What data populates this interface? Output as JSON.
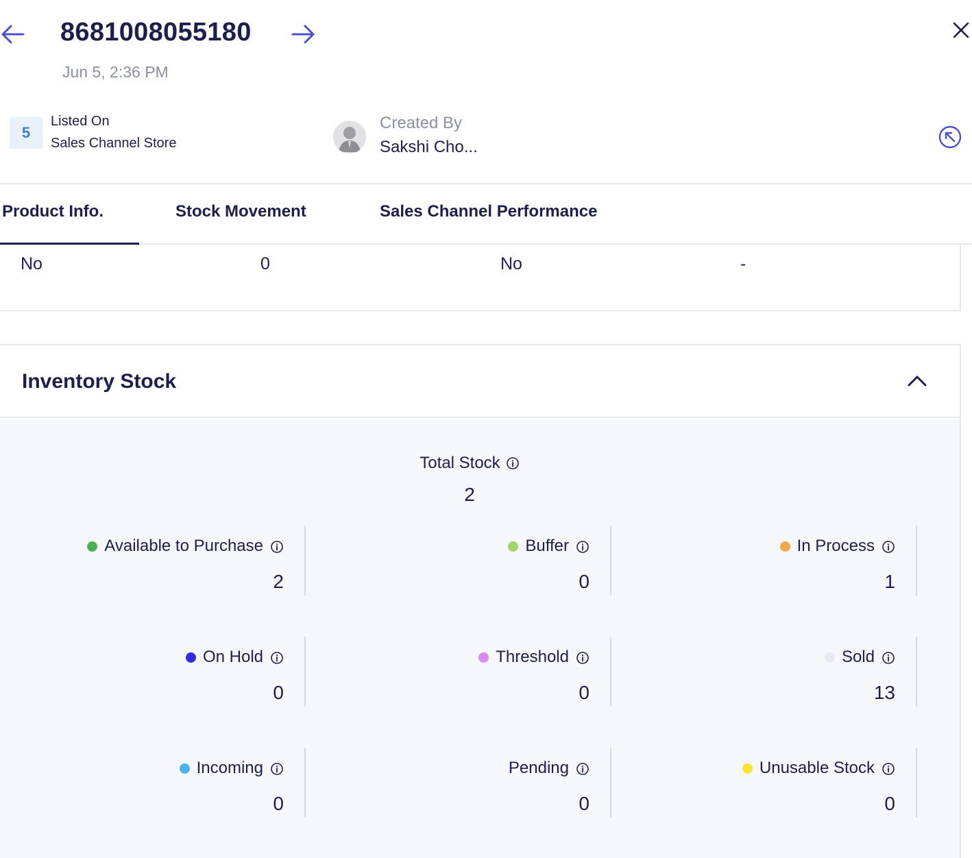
{
  "header": {
    "title": "8681008055180",
    "subtitle": "Jun 5, 2:36 PM",
    "badge_count": "5",
    "listed_label": "Listed On",
    "listed_value": "Sales Channel Store",
    "created_label": "Created By",
    "created_value": "Sakshi Cho..."
  },
  "tabs": [
    {
      "label": "Product Info."
    },
    {
      "label": "Stock Movement"
    },
    {
      "label": "Sales Channel Performance"
    }
  ],
  "info_row": [
    "No",
    "0",
    "No",
    "-"
  ],
  "inventory": {
    "title": "Inventory Stock",
    "total_label": "Total Stock",
    "total_value": "2",
    "items": [
      {
        "label": "Available to Purchase",
        "value": "2",
        "color": "#4caf50"
      },
      {
        "label": "Buffer",
        "value": "0",
        "color": "#a4d36a"
      },
      {
        "label": "In Process",
        "value": "1",
        "color": "#f2a84b"
      },
      {
        "label": "On Hold",
        "value": "0",
        "color": "#3527e6"
      },
      {
        "label": "Threshold",
        "value": "0",
        "color": "#d98bef"
      },
      {
        "label": "Sold",
        "value": "13",
        "color": "#e8e8f3"
      },
      {
        "label": "Incoming",
        "value": "0",
        "color": "#4ab2ee"
      },
      {
        "label": "Pending",
        "value": "0",
        "color": ""
      },
      {
        "label": "Unusable Stock",
        "value": "0",
        "color": "#f7e434"
      }
    ]
  },
  "colors": {
    "accent": "#4a4fd0",
    "text": "#1c1f4a",
    "muted": "#8a90a3"
  }
}
